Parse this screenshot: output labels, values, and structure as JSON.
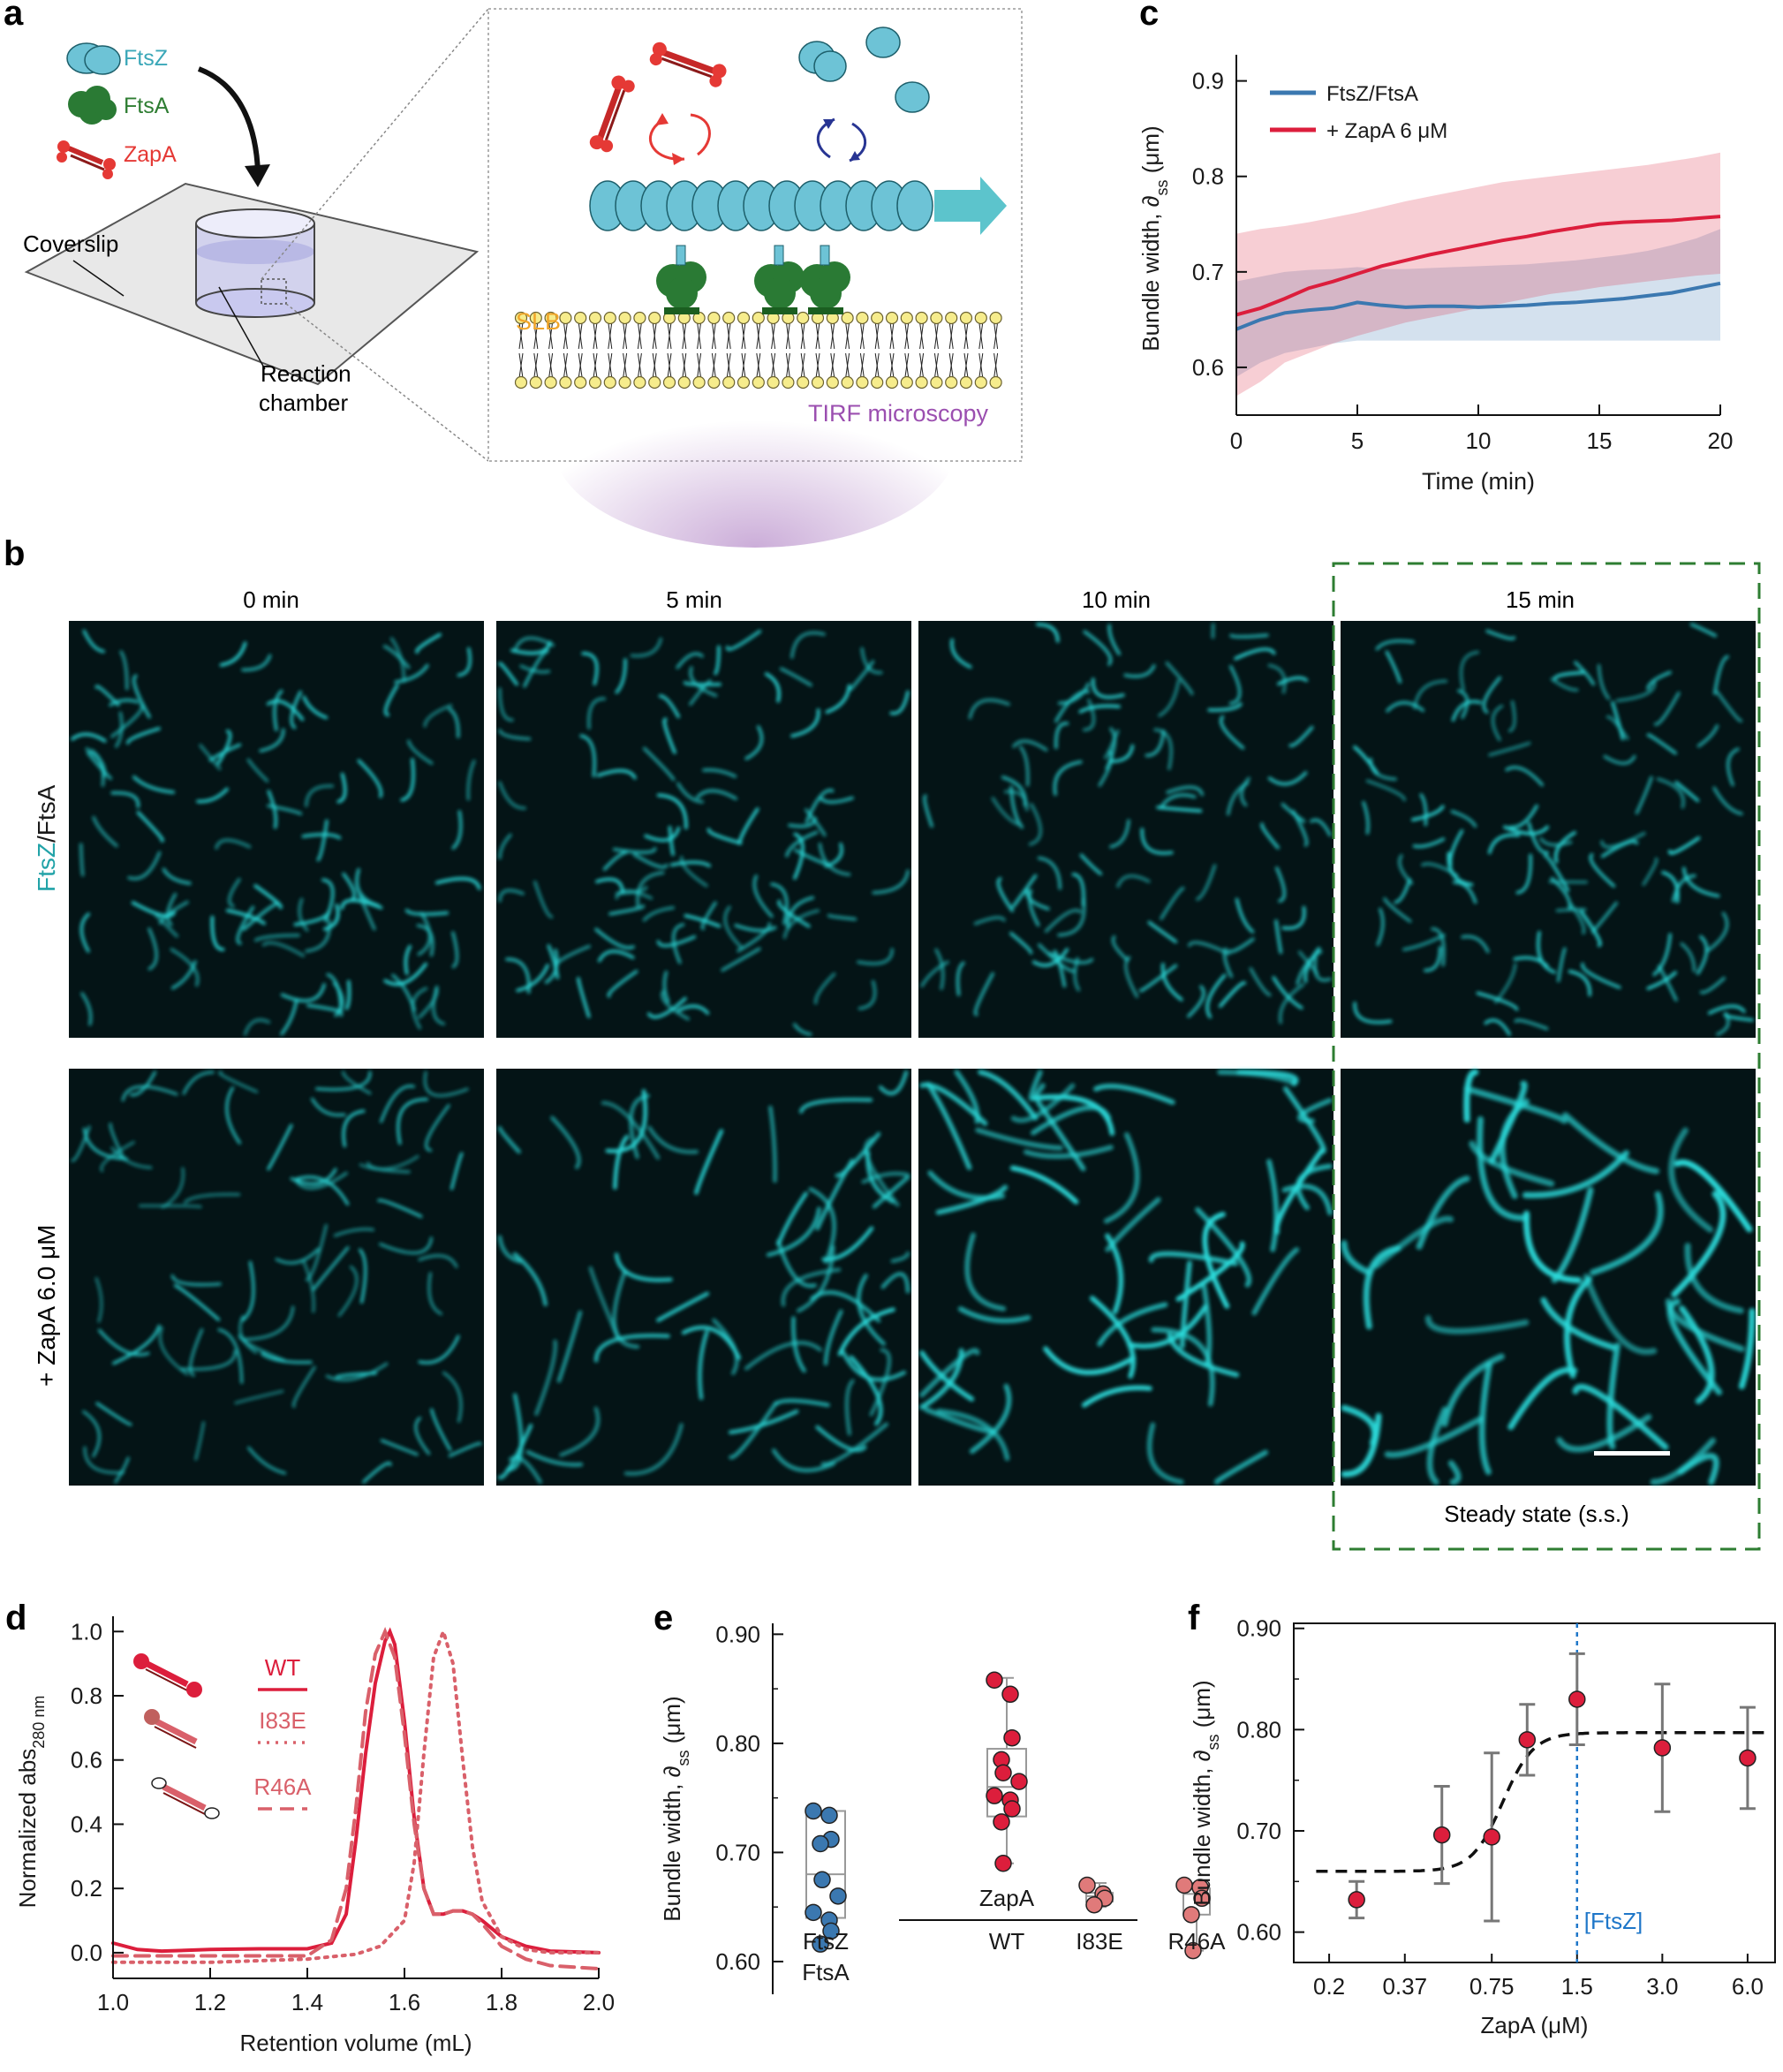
{
  "panel_labels": {
    "a": "a",
    "b": "b",
    "c": "c",
    "d": "d",
    "e": "e",
    "f": "f"
  },
  "panel_a": {
    "legend": [
      {
        "label": "FtsZ",
        "color": "#3aa7b8"
      },
      {
        "label": "FtsA",
        "color": "#2e7d32"
      },
      {
        "label": "ZapA",
        "color": "#e53935"
      }
    ],
    "coverslip_label": "Coverslip",
    "chamber_label_1": "Reaction",
    "chamber_label_2": "chamber",
    "slb_label": "SLB",
    "tirf_label": "TIRF microscopy"
  },
  "panel_b": {
    "time_labels": [
      "0 min",
      "5 min",
      "10 min",
      "15 min"
    ],
    "row_label_1_prefix": "FtsZ",
    "row_label_1_suffix": "/FtsA",
    "row_label_2": "+ ZapA 6.0 μM",
    "steady_state_label": "Steady state (s.s.)"
  },
  "chart_data": [
    {
      "id": "c",
      "type": "line",
      "xlabel": "Time (min)",
      "ylabel": "Bundle width, ∂ss (μm)",
      "ylabel_main": "Bundle width, ∂",
      "ylabel_sub": "ss",
      "ylabel_unit": " (μm)",
      "xlim": [
        0,
        20
      ],
      "ylim": [
        0.55,
        0.92
      ],
      "xticks": [
        0,
        5,
        10,
        15,
        20
      ],
      "yticks": [
        0.6,
        0.7,
        0.8,
        0.9
      ],
      "ytick_labels": [
        "0.6",
        "0.7",
        "0.8",
        "0.9"
      ],
      "series": [
        {
          "name": "FtsZ/FtsA",
          "color": "#3b78b0",
          "x": [
            0,
            1,
            2,
            3,
            4,
            5,
            6,
            7,
            8,
            9,
            10,
            11,
            12,
            13,
            14,
            15,
            16,
            17,
            18,
            19,
            20
          ],
          "values": [
            0.64,
            0.65,
            0.657,
            0.66,
            0.662,
            0.668,
            0.665,
            0.663,
            0.664,
            0.664,
            0.663,
            0.664,
            0.665,
            0.667,
            0.668,
            0.67,
            0.672,
            0.675,
            0.678,
            0.683,
            0.688
          ],
          "lower": [
            0.59,
            0.605,
            0.615,
            0.62,
            0.625,
            0.628,
            0.628,
            0.628,
            0.628,
            0.628,
            0.628,
            0.628,
            0.628,
            0.628,
            0.628,
            0.628,
            0.628,
            0.628,
            0.628,
            0.628,
            0.628
          ],
          "upper": [
            0.69,
            0.695,
            0.7,
            0.702,
            0.703,
            0.705,
            0.703,
            0.703,
            0.704,
            0.705,
            0.706,
            0.707,
            0.708,
            0.71,
            0.712,
            0.715,
            0.718,
            0.722,
            0.728,
            0.735,
            0.745
          ]
        },
        {
          "name": "+ ZapA 6 μM",
          "color": "#dc1e3c",
          "x": [
            0,
            1,
            2,
            3,
            4,
            5,
            6,
            7,
            8,
            9,
            10,
            11,
            12,
            13,
            14,
            15,
            16,
            17,
            18,
            19,
            20
          ],
          "values": [
            0.655,
            0.662,
            0.672,
            0.683,
            0.69,
            0.698,
            0.706,
            0.712,
            0.718,
            0.723,
            0.728,
            0.733,
            0.737,
            0.742,
            0.746,
            0.75,
            0.752,
            0.753,
            0.754,
            0.756,
            0.758
          ],
          "lower": [
            0.57,
            0.585,
            0.605,
            0.615,
            0.625,
            0.633,
            0.64,
            0.647,
            0.652,
            0.657,
            0.662,
            0.667,
            0.672,
            0.677,
            0.68,
            0.684,
            0.687,
            0.69,
            0.693,
            0.696,
            0.698
          ],
          "upper": [
            0.74,
            0.745,
            0.748,
            0.752,
            0.757,
            0.762,
            0.768,
            0.774,
            0.779,
            0.784,
            0.789,
            0.794,
            0.797,
            0.8,
            0.803,
            0.806,
            0.809,
            0.812,
            0.816,
            0.82,
            0.825
          ]
        }
      ]
    },
    {
      "id": "d",
      "type": "line",
      "xlabel": "Retention volume (mL)",
      "ylabel": "Normalized abs280 nm",
      "ylabel_main": "Normalized abs",
      "ylabel_sub": "280 nm",
      "xlim": [
        1.0,
        2.0
      ],
      "ylim": [
        -0.08,
        1.02
      ],
      "xticks": [
        1.0,
        1.2,
        1.4,
        1.6,
        1.8,
        2.0
      ],
      "xtick_labels": [
        "1.0",
        "1.2",
        "1.4",
        "1.6",
        "1.8",
        "2.0"
      ],
      "yticks": [
        0.0,
        0.2,
        0.4,
        0.6,
        0.8,
        1.0
      ],
      "ytick_labels": [
        "0.0",
        "0.2",
        "0.4",
        "0.6",
        "0.8",
        "1.0"
      ],
      "series": [
        {
          "name": "WT",
          "style": "solid",
          "color": "#dc1e3c",
          "x": [
            1.0,
            1.05,
            1.1,
            1.2,
            1.3,
            1.4,
            1.45,
            1.48,
            1.5,
            1.52,
            1.54,
            1.56,
            1.57,
            1.58,
            1.6,
            1.62,
            1.64,
            1.66,
            1.68,
            1.7,
            1.72,
            1.74,
            1.76,
            1.8,
            1.85,
            1.9,
            2.0
          ],
          "values": [
            0.03,
            0.01,
            0.005,
            0.01,
            0.012,
            0.012,
            0.03,
            0.12,
            0.35,
            0.62,
            0.84,
            0.97,
            1.0,
            0.96,
            0.72,
            0.42,
            0.2,
            0.12,
            0.12,
            0.13,
            0.13,
            0.12,
            0.1,
            0.05,
            0.02,
            0.005,
            0.0
          ]
        },
        {
          "name": "I83E",
          "style": "dotted",
          "color": "#d9606a",
          "x": [
            1.0,
            1.2,
            1.4,
            1.5,
            1.55,
            1.6,
            1.62,
            1.64,
            1.66,
            1.68,
            1.7,
            1.72,
            1.74,
            1.76,
            1.8,
            1.85,
            1.9,
            2.0
          ],
          "values": [
            -0.03,
            -0.03,
            -0.02,
            -0.005,
            0.02,
            0.1,
            0.28,
            0.62,
            0.92,
            1.0,
            0.9,
            0.6,
            0.33,
            0.16,
            0.05,
            0.01,
            0.0,
            0.0
          ]
        },
        {
          "name": "R46A",
          "style": "dashed",
          "color": "#d9606a",
          "x": [
            1.0,
            1.2,
            1.4,
            1.45,
            1.48,
            1.5,
            1.52,
            1.54,
            1.56,
            1.58,
            1.6,
            1.62,
            1.64,
            1.66,
            1.68,
            1.7,
            1.72,
            1.74,
            1.76,
            1.8,
            1.85,
            1.9,
            2.0
          ],
          "values": [
            -0.01,
            -0.01,
            -0.01,
            0.04,
            0.2,
            0.45,
            0.75,
            0.93,
            1.0,
            0.92,
            0.68,
            0.4,
            0.2,
            0.12,
            0.12,
            0.13,
            0.13,
            0.12,
            0.09,
            0.02,
            -0.02,
            -0.04,
            -0.05
          ]
        }
      ]
    },
    {
      "id": "e",
      "type": "box",
      "ylabel": "Bundle width, ∂ss (μm)",
      "ylabel_main": "Bundle width, ∂",
      "ylabel_sub": "ss",
      "ylabel_unit": " (μm)",
      "ylim": [
        0.57,
        0.91
      ],
      "yticks": [
        0.6,
        0.7,
        0.8,
        0.9
      ],
      "ytick_labels": [
        "0.60",
        "0.70",
        "0.80",
        "0.90"
      ],
      "group_label": "ZapA",
      "categories": [
        "FtsZ FtsA",
        "WT",
        "I83E",
        "R46A"
      ],
      "category_line1": [
        "FtsZ",
        "WT",
        "I83E",
        "R46A"
      ],
      "category_line2": [
        "FtsA",
        "",
        "",
        ""
      ],
      "colors": [
        "#3b78b0",
        "#dc1e3c",
        "#e07a7a",
        "#e07a7a"
      ],
      "boxes": [
        {
          "q1": 0.64,
          "median": 0.68,
          "q3": 0.738,
          "min": 0.615,
          "max": 0.738
        },
        {
          "q1": 0.733,
          "median": 0.76,
          "q3": 0.795,
          "min": 0.69,
          "max": 0.86
        },
        {
          "q1": 0.655,
          "median": 0.66,
          "q3": 0.663,
          "min": 0.65,
          "max": 0.672
        },
        {
          "q1": 0.643,
          "median": 0.662,
          "q3": 0.667,
          "min": 0.61,
          "max": 0.672
        }
      ],
      "points": [
        [
          0.738,
          0.734,
          0.712,
          0.708,
          0.675,
          0.66,
          0.645,
          0.638,
          0.628,
          0.616
        ],
        [
          0.858,
          0.845,
          0.805,
          0.785,
          0.773,
          0.765,
          0.752,
          0.748,
          0.74,
          0.728,
          0.69
        ],
        [
          0.67,
          0.662,
          0.658,
          0.652
        ],
        [
          0.67,
          0.668,
          0.658,
          0.643,
          0.61
        ]
      ]
    },
    {
      "id": "f",
      "type": "scatter",
      "xlabel": "ZapA (μM)",
      "ylabel": "Bundle width, ∂ss (μm)",
      "ylabel_main": "Bundle width, ∂",
      "ylabel_sub": "ss",
      "ylabel_unit": " (μm)",
      "xscale": "log",
      "xlim": [
        0.15,
        7.5
      ],
      "ylim": [
        0.57,
        0.905
      ],
      "xticks": [
        0.2,
        0.37,
        0.75,
        1.5,
        3.0,
        6.0
      ],
      "xtick_labels": [
        "0.2",
        "0.37",
        "0.75",
        "1.5",
        "3.0",
        "6.0"
      ],
      "yticks": [
        0.6,
        0.7,
        0.8,
        0.9
      ],
      "ytick_labels": [
        "0.60",
        "0.70",
        "0.80",
        "0.90"
      ],
      "x": [
        0.25,
        0.5,
        0.75,
        1.0,
        1.5,
        3.0,
        6.0
      ],
      "values": [
        0.632,
        0.696,
        0.694,
        0.79,
        0.83,
        0.782,
        0.772
      ],
      "errors": [
        0.018,
        0.048,
        0.083,
        0.035,
        0.045,
        0.063,
        0.05
      ],
      "fit": {
        "type": "sigmoid",
        "bottom": 0.66,
        "top": 0.797,
        "x50": 0.82,
        "hill": 8
      },
      "reference_line": {
        "x": 1.5,
        "label": "[FtsZ]",
        "color": "#1f77c9"
      }
    }
  ]
}
